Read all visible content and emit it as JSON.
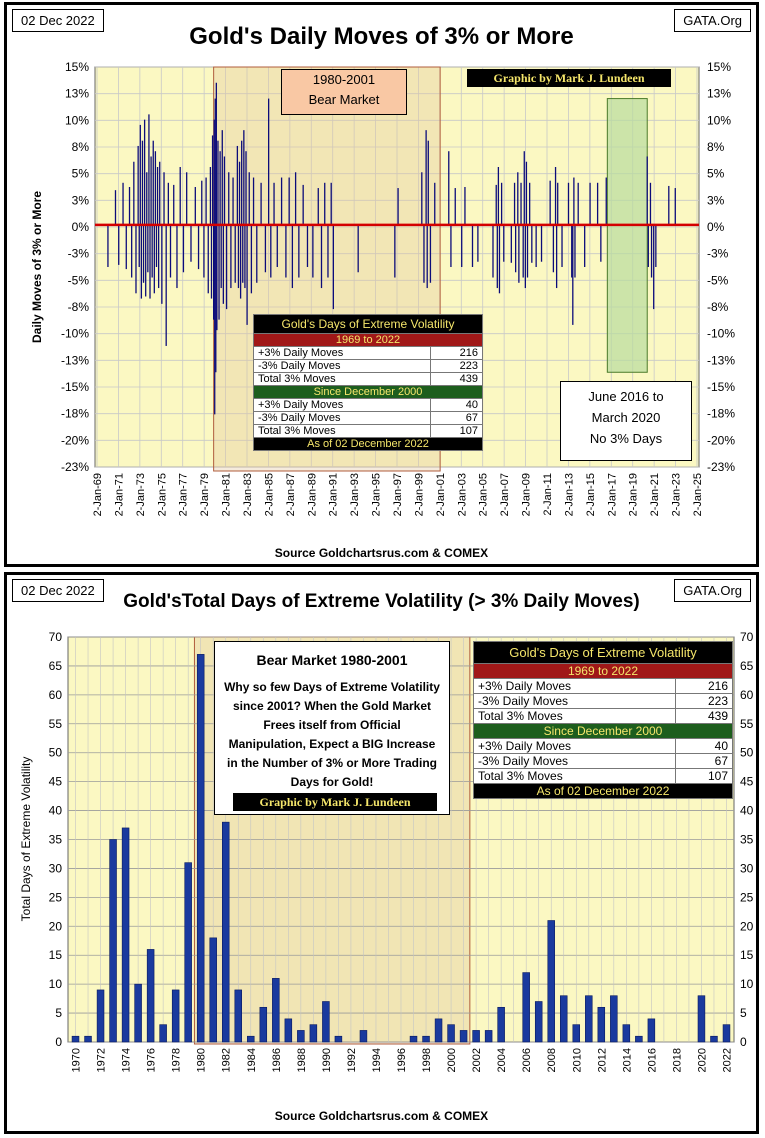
{
  "top_panel": {
    "date": "02 Dec 2022",
    "site": "GATA.Org",
    "title": "Gold's Daily Moves of 3% or More",
    "credit": "Graphic by Mark J. Lundeen",
    "bear_label_line1": "1980-2001",
    "bear_label_line2": "Bear Market",
    "june_note_line1": "June 2016 to",
    "june_note_line2": "March 2020",
    "june_note_line3": "No 3% Days",
    "source": "Source Goldchartsrus.com & COMEX"
  },
  "bottom_panel": {
    "date": "02 Dec 2022",
    "site": "GATA.Org",
    "title": "Gold'sTotal Days of Extreme Volatility (> 3% Daily Moves)",
    "note_title": "Bear Market 1980-2001",
    "note_body": "Why so few Days of Extreme Volatility since 2001?   When the Gold Market Frees itself from Official Manipulation, Expect a BIG Increase in the Number of 3% or More Trading Days for Gold!",
    "credit": "Graphic by Mark J. Lundeen",
    "source": "Source  Goldchartsrus.com  & COMEX"
  },
  "volatility_table": {
    "title": "Gold's Days of Extreme Volatility",
    "period1": "1969 to 2022",
    "rows1": [
      {
        "label": "+3% Daily Moves",
        "value": "216"
      },
      {
        "label": "-3% Daily Moves",
        "value": "223"
      },
      {
        "label": "Total 3% Moves",
        "value": "439"
      }
    ],
    "period2": "Since December 2000",
    "rows2": [
      {
        "label": "+3% Daily Moves",
        "value": "40"
      },
      {
        "label": "-3% Daily Moves",
        "value": "67"
      },
      {
        "label": "Total 3% Moves",
        "value": "107"
      }
    ],
    "footer": "As of 02 December 2022"
  },
  "chart_data": [
    {
      "type": "bar",
      "title": "Gold's Daily Moves of 3% or More",
      "ylabel": "Daily Moves of 3% or More",
      "xlabel": "",
      "ylim": [
        -23,
        15
      ],
      "y_ticks": [
        "15%",
        "13%",
        "10%",
        "8%",
        "5%",
        "3%",
        "0%",
        "-3%",
        "-5%",
        "-8%",
        "-10%",
        "-13%",
        "-15%",
        "-18%",
        "-20%",
        "-23%"
      ],
      "x_ticks": [
        "2-Jan-69",
        "2-Jan-71",
        "2-Jan-73",
        "2-Jan-75",
        "2-Jan-77",
        "2-Jan-79",
        "2-Jan-81",
        "2-Jan-83",
        "2-Jan-85",
        "2-Jan-87",
        "2-Jan-89",
        "2-Jan-91",
        "2-Jan-93",
        "2-Jan-95",
        "2-Jan-97",
        "2-Jan-99",
        "2-Jan-01",
        "2-Jan-03",
        "2-Jan-05",
        "2-Jan-07",
        "2-Jan-09",
        "2-Jan-11",
        "2-Jan-13",
        "2-Jan-15",
        "2-Jan-17",
        "2-Jan-19",
        "2-Jan-21",
        "2-Jan-23",
        "2-Jan-25"
      ],
      "xlim_years": [
        1969,
        2025
      ],
      "highlight_ranges": [
        {
          "name": "1980-2001 Bear Market",
          "from": 1980.0,
          "to": 2001.0
        },
        {
          "name": "June 2016 to March 2020",
          "from": 2016.5,
          "to": 2020.2
        }
      ],
      "moves": [
        [
          1970.2,
          -4.0
        ],
        [
          1970.9,
          3.3
        ],
        [
          1971.2,
          -3.8
        ],
        [
          1971.6,
          4.0
        ],
        [
          1971.9,
          -4.2
        ],
        [
          1972.2,
          3.6
        ],
        [
          1972.4,
          -5.0
        ],
        [
          1972.6,
          6.0
        ],
        [
          1972.8,
          -6.5
        ],
        [
          1973.0,
          7.5
        ],
        [
          1973.1,
          -4.0
        ],
        [
          1973.2,
          9.5
        ],
        [
          1973.3,
          -7.0
        ],
        [
          1973.4,
          8.0
        ],
        [
          1973.5,
          -5.5
        ],
        [
          1973.6,
          10.0
        ],
        [
          1973.7,
          -6.8
        ],
        [
          1973.8,
          5.0
        ],
        [
          1973.9,
          -4.5
        ],
        [
          1974.0,
          10.5
        ],
        [
          1974.1,
          -7.0
        ],
        [
          1974.2,
          6.5
        ],
        [
          1974.3,
          -5.0
        ],
        [
          1974.4,
          8.0
        ],
        [
          1974.5,
          -6.5
        ],
        [
          1974.6,
          7.0
        ],
        [
          1974.7,
          -4.0
        ],
        [
          1974.8,
          5.5
        ],
        [
          1974.9,
          -6.0
        ],
        [
          1975.0,
          6.0
        ],
        [
          1975.2,
          -7.5
        ],
        [
          1975.4,
          5.0
        ],
        [
          1975.6,
          -11.5
        ],
        [
          1975.8,
          4.0
        ],
        [
          1976.0,
          -5.0
        ],
        [
          1976.3,
          3.8
        ],
        [
          1976.6,
          -6.0
        ],
        [
          1976.9,
          5.5
        ],
        [
          1977.2,
          -4.5
        ],
        [
          1977.5,
          5.0
        ],
        [
          1977.9,
          -3.5
        ],
        [
          1978.3,
          3.6
        ],
        [
          1978.6,
          -4.2
        ],
        [
          1978.9,
          4.2
        ],
        [
          1979.1,
          -5.0
        ],
        [
          1979.3,
          4.5
        ],
        [
          1979.5,
          -6.5
        ],
        [
          1979.7,
          5.5
        ],
        [
          1979.8,
          -7.0
        ],
        [
          1979.9,
          8.5
        ],
        [
          1980.0,
          -9.0
        ],
        [
          1980.05,
          10.0
        ],
        [
          1980.1,
          -18.0
        ],
        [
          1980.15,
          12.0
        ],
        [
          1980.2,
          -14.0
        ],
        [
          1980.25,
          13.5
        ],
        [
          1980.3,
          -10.0
        ],
        [
          1980.4,
          8.0
        ],
        [
          1980.5,
          -9.0
        ],
        [
          1980.6,
          7.0
        ],
        [
          1980.7,
          -6.0
        ],
        [
          1980.8,
          9.0
        ],
        [
          1980.9,
          -7.5
        ],
        [
          1981.0,
          6.5
        ],
        [
          1981.2,
          -8.0
        ],
        [
          1981.4,
          5.0
        ],
        [
          1981.6,
          -6.0
        ],
        [
          1981.8,
          4.5
        ],
        [
          1982.0,
          -5.5
        ],
        [
          1982.2,
          7.5
        ],
        [
          1982.3,
          -6.0
        ],
        [
          1982.4,
          6.0
        ],
        [
          1982.5,
          -7.0
        ],
        [
          1982.6,
          8.0
        ],
        [
          1982.7,
          -5.5
        ],
        [
          1982.8,
          9.0
        ],
        [
          1982.9,
          -6.0
        ],
        [
          1983.0,
          7.0
        ],
        [
          1983.1,
          -9.5
        ],
        [
          1983.3,
          5.0
        ],
        [
          1983.5,
          -6.5
        ],
        [
          1983.7,
          4.5
        ],
        [
          1984.0,
          -5.5
        ],
        [
          1984.4,
          4.0
        ],
        [
          1984.8,
          -4.5
        ],
        [
          1985.1,
          12.0
        ],
        [
          1985.3,
          -5.0
        ],
        [
          1985.6,
          4.0
        ],
        [
          1985.9,
          -4.0
        ],
        [
          1986.3,
          4.5
        ],
        [
          1986.7,
          -5.0
        ],
        [
          1987.0,
          4.5
        ],
        [
          1987.3,
          -6.0
        ],
        [
          1987.6,
          5.0
        ],
        [
          1987.9,
          -5.0
        ],
        [
          1988.3,
          3.8
        ],
        [
          1988.7,
          -4.0
        ],
        [
          1989.2,
          -5.0
        ],
        [
          1989.7,
          3.5
        ],
        [
          1990.0,
          -6.0
        ],
        [
          1990.3,
          4.0
        ],
        [
          1990.6,
          -5.0
        ],
        [
          1990.9,
          4.0
        ],
        [
          1991.1,
          -8.0
        ],
        [
          1993.4,
          -4.5
        ],
        [
          1996.8,
          -5.0
        ],
        [
          1997.1,
          3.5
        ],
        [
          1999.3,
          5.0
        ],
        [
          1999.5,
          -5.5
        ],
        [
          1999.7,
          9.0
        ],
        [
          1999.8,
          -6.0
        ],
        [
          1999.9,
          8.0
        ],
        [
          2000.1,
          -5.5
        ],
        [
          2000.5,
          4.0
        ],
        [
          2001.8,
          7.0
        ],
        [
          2002.0,
          -4.0
        ],
        [
          2002.4,
          3.5
        ],
        [
          2003.0,
          -4.0
        ],
        [
          2003.3,
          3.6
        ],
        [
          2004.0,
          -4.0
        ],
        [
          2004.5,
          -3.5
        ],
        [
          2005.9,
          -5.0
        ],
        [
          2006.2,
          3.8
        ],
        [
          2006.3,
          -6.0
        ],
        [
          2006.4,
          5.5
        ],
        [
          2006.5,
          -6.5
        ],
        [
          2006.7,
          4.0
        ],
        [
          2006.9,
          -3.5
        ],
        [
          2007.6,
          -3.6
        ],
        [
          2007.9,
          4.0
        ],
        [
          2008.0,
          -4.5
        ],
        [
          2008.2,
          5.0
        ],
        [
          2008.3,
          -5.5
        ],
        [
          2008.5,
          4.0
        ],
        [
          2008.7,
          -5.0
        ],
        [
          2008.8,
          7.0
        ],
        [
          2008.9,
          -6.0
        ],
        [
          2009.0,
          6.0
        ],
        [
          2009.1,
          -5.0
        ],
        [
          2009.3,
          4.0
        ],
        [
          2009.5,
          -3.6
        ],
        [
          2009.9,
          -4.0
        ],
        [
          2010.4,
          -3.5
        ],
        [
          2011.2,
          4.2
        ],
        [
          2011.5,
          -4.5
        ],
        [
          2011.7,
          5.5
        ],
        [
          2011.8,
          -6.0
        ],
        [
          2011.9,
          4.0
        ],
        [
          2012.3,
          -4.0
        ],
        [
          2012.9,
          4.0
        ],
        [
          2013.2,
          -5.0
        ],
        [
          2013.3,
          -9.5
        ],
        [
          2013.4,
          4.5
        ],
        [
          2013.5,
          -5.0
        ],
        [
          2013.8,
          4.0
        ],
        [
          2014.4,
          -4.0
        ],
        [
          2014.9,
          4.0
        ],
        [
          2015.6,
          4.0
        ],
        [
          2015.9,
          -3.5
        ],
        [
          2016.4,
          4.5
        ],
        [
          2020.2,
          6.5
        ],
        [
          2020.3,
          -4.0
        ],
        [
          2020.5,
          4.0
        ],
        [
          2020.6,
          -5.0
        ],
        [
          2020.8,
          -8.0
        ],
        [
          2021.0,
          -4.0
        ],
        [
          2022.2,
          3.7
        ],
        [
          2022.8,
          3.5
        ]
      ]
    },
    {
      "type": "bar",
      "title": "Gold'sTotal Days of Extreme Volatility (> 3% Daily Moves)",
      "ylabel": "Total Days of Extreme Volatility",
      "xlabel": "",
      "ylim": [
        0,
        70
      ],
      "y_ticks": [
        0,
        5,
        10,
        15,
        20,
        25,
        30,
        35,
        40,
        45,
        50,
        55,
        60,
        65,
        70
      ],
      "x_tick_labels": [
        "1970",
        "1972",
        "1974",
        "1976",
        "1978",
        "1980",
        "1982",
        "1984",
        "1986",
        "1988",
        "1990",
        "1992",
        "1994",
        "1996",
        "1998",
        "2000",
        "2002",
        "2004",
        "2006",
        "2008",
        "2010",
        "2012",
        "2014",
        "2016",
        "2018",
        "2020",
        "2022"
      ],
      "categories": [
        1970,
        1971,
        1972,
        1973,
        1974,
        1975,
        1976,
        1977,
        1978,
        1979,
        1980,
        1981,
        1982,
        1983,
        1984,
        1985,
        1986,
        1987,
        1988,
        1989,
        1990,
        1991,
        1992,
        1993,
        1994,
        1995,
        1996,
        1997,
        1998,
        1999,
        2000,
        2001,
        2002,
        2003,
        2004,
        2005,
        2006,
        2007,
        2008,
        2009,
        2010,
        2011,
        2012,
        2013,
        2014,
        2015,
        2016,
        2017,
        2018,
        2019,
        2020,
        2021,
        2022
      ],
      "values": [
        1,
        1,
        9,
        35,
        37,
        10,
        16,
        3,
        9,
        31,
        67,
        18,
        38,
        9,
        1,
        6,
        11,
        4,
        2,
        3,
        7,
        1,
        0,
        2,
        0,
        0,
        0,
        1,
        1,
        4,
        3,
        2,
        2,
        2,
        6,
        0,
        12,
        7,
        21,
        8,
        3,
        8,
        6,
        8,
        3,
        1,
        4,
        0,
        0,
        0,
        8,
        1,
        3
      ],
      "highlight_ranges": [
        {
          "name": "Bear Market 1980-2001",
          "from": 1980,
          "to": 2001
        }
      ]
    }
  ]
}
